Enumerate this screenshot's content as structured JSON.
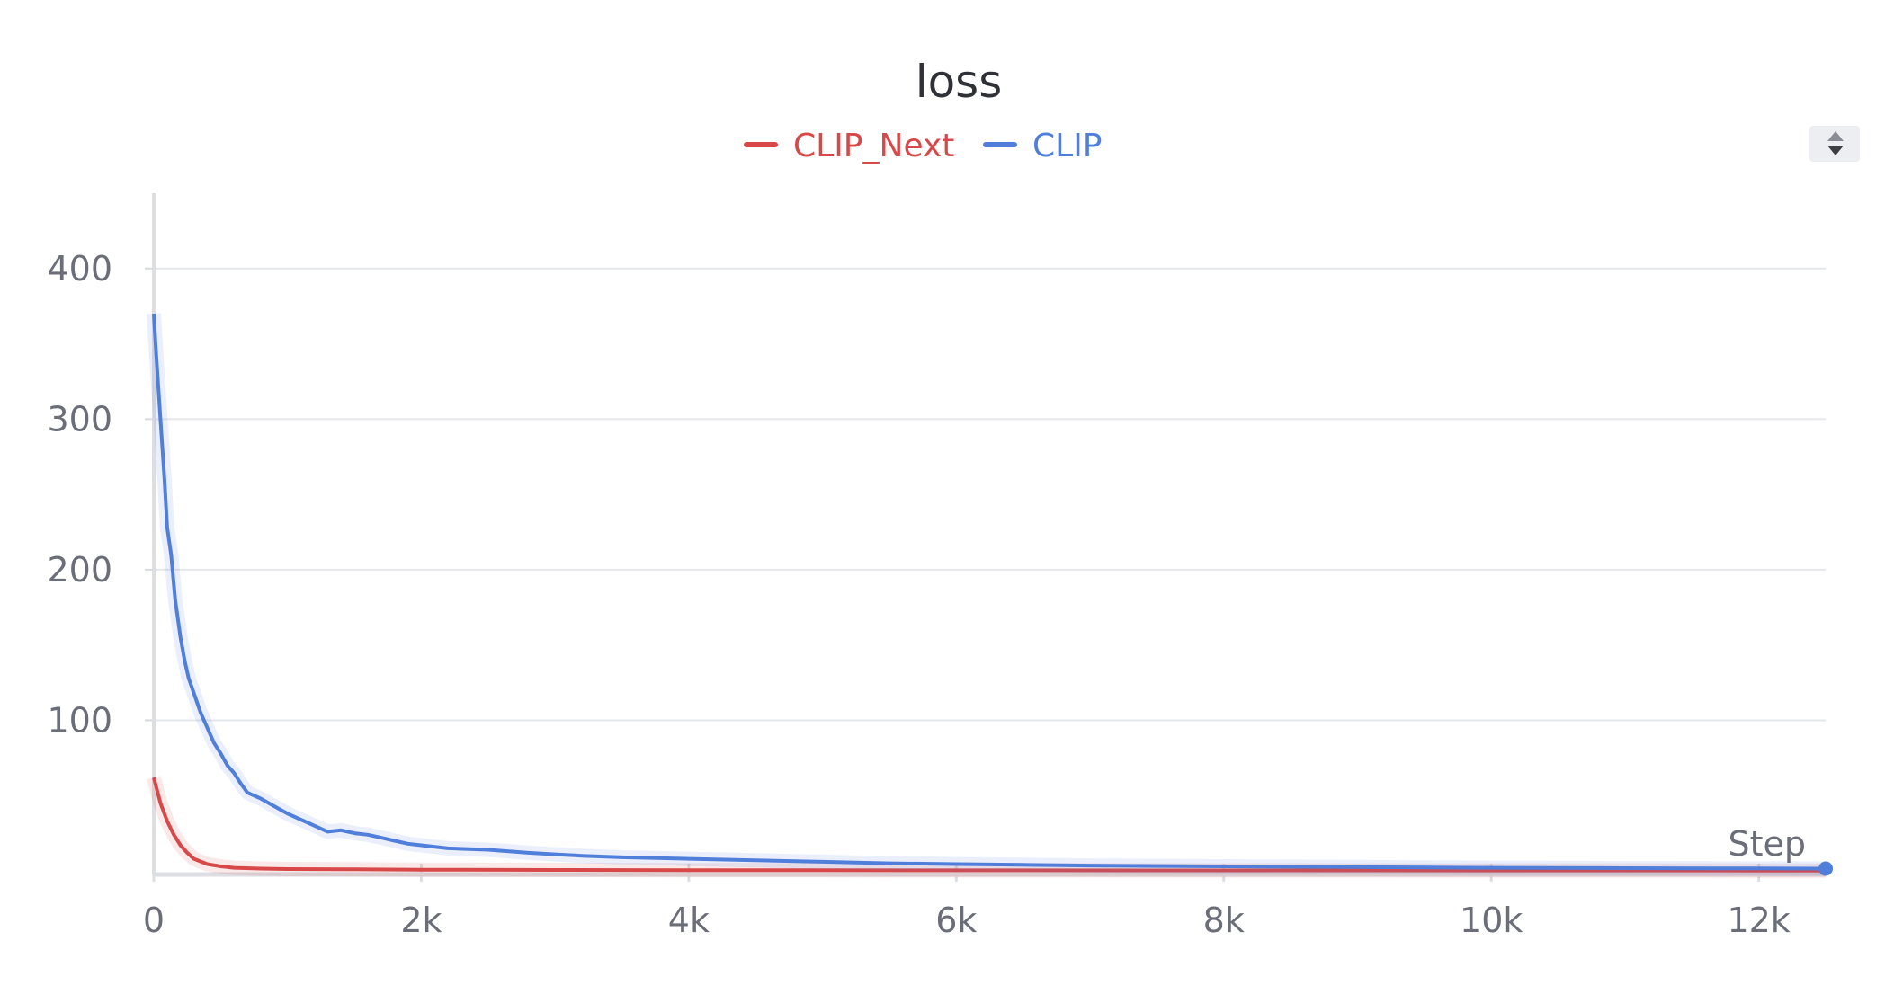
{
  "chart_data": {
    "type": "line",
    "title": "loss",
    "xlabel": "Step",
    "ylabel": "",
    "xlim": [
      0,
      12500
    ],
    "ylim": [
      0,
      450
    ],
    "x_ticks": [
      0,
      2000,
      4000,
      6000,
      8000,
      10000,
      12000
    ],
    "x_tick_labels": [
      "0",
      "2k",
      "4k",
      "6k",
      "8k",
      "10k",
      "12k"
    ],
    "y_ticks": [
      100,
      200,
      300,
      400
    ],
    "y_tick_labels": [
      "100",
      "200",
      "300",
      "400"
    ],
    "grid": true,
    "legend_position": "top-center",
    "series": [
      {
        "name": "CLIP_Next",
        "color": "#d94848",
        "x": [
          0,
          50,
          100,
          150,
          200,
          250,
          300,
          400,
          500,
          600,
          800,
          1000,
          1500,
          2000,
          3000,
          4000,
          5000,
          6000,
          8000,
          10000,
          12000,
          12500
        ],
        "y": [
          62,
          45,
          33,
          24,
          17,
          12,
          8,
          4.5,
          3,
          2,
          1.5,
          1.2,
          1,
          0.8,
          0.6,
          0.5,
          0.4,
          0.35,
          0.3,
          0.25,
          0.2,
          0.2
        ]
      },
      {
        "name": "CLIP",
        "color": "#4f7fdb",
        "x": [
          0,
          20,
          50,
          80,
          100,
          130,
          160,
          200,
          230,
          260,
          300,
          350,
          400,
          450,
          500,
          550,
          600,
          650,
          700,
          800,
          900,
          1000,
          1100,
          1200,
          1300,
          1400,
          1500,
          1600,
          1700,
          1800,
          1900,
          2000,
          2200,
          2500,
          2800,
          3000,
          3200,
          3500,
          4000,
          4500,
          5000,
          5500,
          6000,
          6500,
          7000,
          8000,
          9000,
          10000,
          11000,
          12000,
          12500
        ],
        "y": [
          370,
          340,
          300,
          260,
          228,
          210,
          180,
          155,
          140,
          128,
          118,
          105,
          95,
          85,
          78,
          70,
          65,
          58,
          52,
          48,
          43,
          38,
          34,
          30,
          26,
          27,
          25,
          24,
          22,
          20,
          18,
          17,
          15,
          14,
          12,
          11,
          10,
          9,
          8,
          7,
          6,
          5,
          4.5,
          4,
          3.5,
          3,
          2.5,
          2,
          1.8,
          1.6,
          1.5
        ]
      }
    ]
  }
}
